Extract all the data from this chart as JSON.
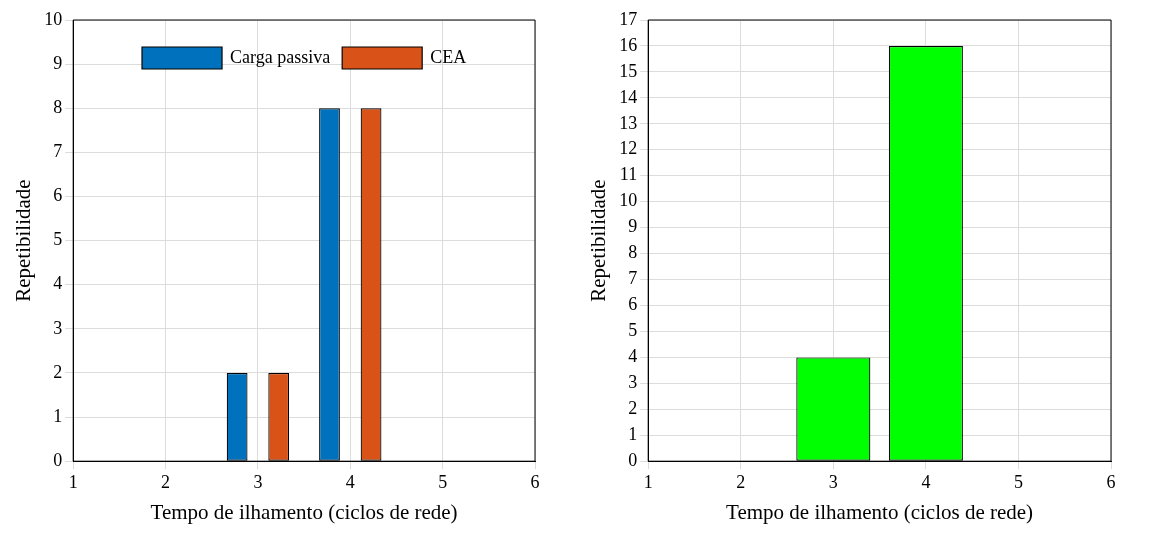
{
  "chart_data": [
    {
      "type": "bar",
      "x": [
        1,
        2,
        3,
        4,
        5,
        6
      ],
      "xlim": [
        1,
        6
      ],
      "xticks": [
        1,
        2,
        3,
        4,
        5,
        6
      ],
      "ylim": [
        0,
        10
      ],
      "yticks": [
        0,
        1,
        2,
        3,
        4,
        5,
        6,
        7,
        8,
        9,
        10
      ],
      "xlabel": "Tempo de ilhamento (ciclos de rede)",
      "ylabel": "Repetibilidade",
      "grid": true,
      "legend": "top",
      "series": [
        {
          "name": "Carga passiva",
          "color": "#0072bd",
          "values": [
            0,
            0,
            2,
            8,
            0,
            0
          ]
        },
        {
          "name": "CEA",
          "color": "#d95319",
          "values": [
            0,
            0,
            2,
            8,
            0,
            0
          ]
        }
      ]
    },
    {
      "type": "bar",
      "x": [
        1,
        2,
        3,
        4,
        5,
        6
      ],
      "xlim": [
        1,
        6
      ],
      "xticks": [
        1,
        2,
        3,
        4,
        5,
        6
      ],
      "ylim": [
        0,
        17
      ],
      "yticks": [
        0,
        1,
        2,
        3,
        4,
        5,
        6,
        7,
        8,
        9,
        10,
        11,
        12,
        13,
        14,
        15,
        16,
        17
      ],
      "xlabel": "Tempo de ilhamento (ciclos de rede)",
      "ylabel": "Repetibilidade",
      "grid": true,
      "legend": false,
      "series": [
        {
          "color": "#00ff00",
          "values": [
            0,
            0,
            4,
            16,
            0,
            0
          ]
        }
      ]
    }
  ]
}
